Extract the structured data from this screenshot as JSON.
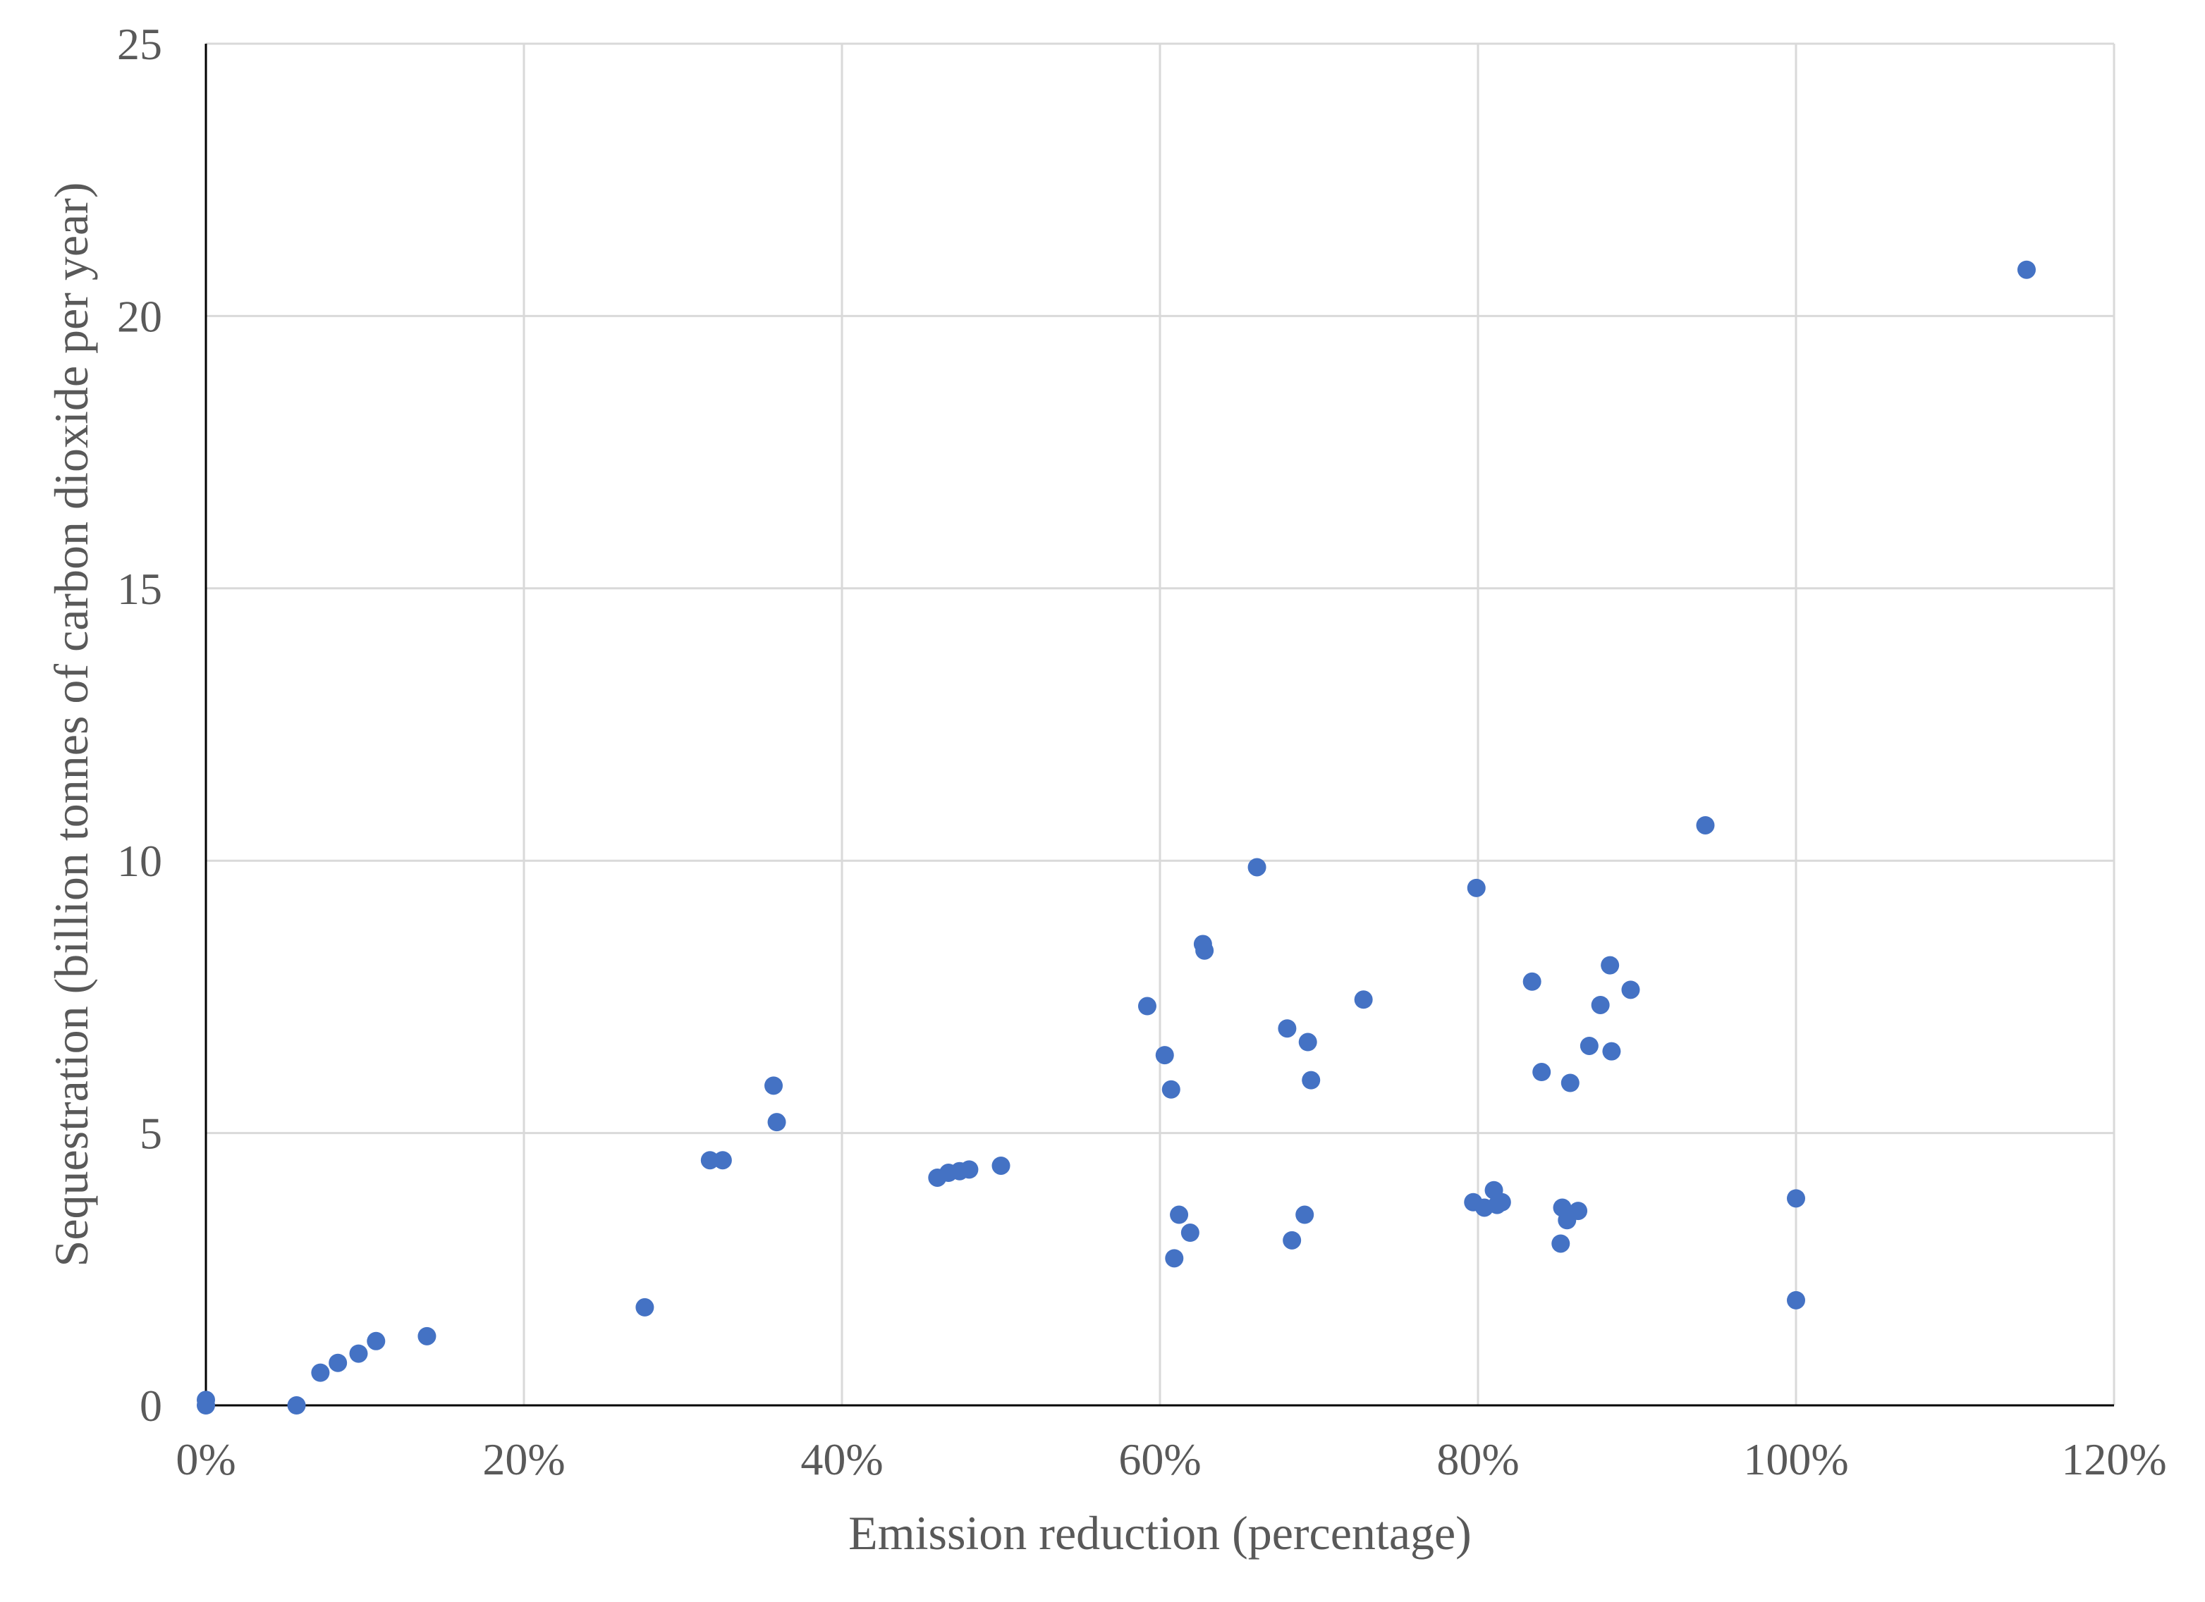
{
  "chart_data": {
    "type": "scatter",
    "title": "",
    "xlabel": "Emission reduction (percentage)",
    "ylabel": "Sequestration (billion tonnes of carbon dioxide per year)",
    "xlim": [
      0,
      1.2
    ],
    "ylim": [
      0,
      25
    ],
    "x_ticks": [
      0,
      0.2,
      0.4,
      0.6,
      0.8,
      1.0,
      1.2
    ],
    "x_tick_labels": [
      "0%",
      "20%",
      "40%",
      "60%",
      "80%",
      "100%",
      "120%"
    ],
    "y_ticks": [
      0,
      5,
      10,
      15,
      20,
      25
    ],
    "y_tick_labels": [
      "0",
      "5",
      "10",
      "15",
      "20",
      "25"
    ],
    "grid": true,
    "legend": "none",
    "colors": {
      "marker": "#4472C4",
      "grid": "#D9D9D9",
      "axis": "#000000",
      "text": "#595959"
    },
    "series": [
      {
        "points": [
          [
            0.0,
            0.1
          ],
          [
            0.0,
            0.0
          ],
          [
            0.057,
            0.0
          ],
          [
            0.072,
            0.6
          ],
          [
            0.083,
            0.78
          ],
          [
            0.096,
            0.95
          ],
          [
            0.107,
            1.18
          ],
          [
            0.139,
            1.27
          ],
          [
            0.276,
            1.8
          ],
          [
            0.317,
            4.5
          ],
          [
            0.325,
            4.5
          ],
          [
            0.357,
            5.87
          ],
          [
            0.359,
            5.2
          ],
          [
            0.46,
            4.18
          ],
          [
            0.467,
            4.27
          ],
          [
            0.474,
            4.3
          ],
          [
            0.48,
            4.33
          ],
          [
            0.5,
            4.4
          ],
          [
            0.592,
            7.33
          ],
          [
            0.603,
            6.43
          ],
          [
            0.607,
            5.8
          ],
          [
            0.609,
            2.7
          ],
          [
            0.612,
            3.5
          ],
          [
            0.619,
            3.17
          ],
          [
            0.627,
            8.47
          ],
          [
            0.628,
            8.35
          ],
          [
            0.661,
            9.88
          ],
          [
            0.68,
            6.92
          ],
          [
            0.683,
            3.03
          ],
          [
            0.691,
            3.5
          ],
          [
            0.693,
            6.67
          ],
          [
            0.695,
            5.97
          ],
          [
            0.728,
            7.45
          ],
          [
            0.797,
            3.73
          ],
          [
            0.799,
            9.5
          ],
          [
            0.804,
            3.63
          ],
          [
            0.81,
            3.95
          ],
          [
            0.812,
            3.68
          ],
          [
            0.815,
            3.73
          ],
          [
            0.834,
            7.78
          ],
          [
            0.84,
            6.12
          ],
          [
            0.852,
            2.97
          ],
          [
            0.853,
            3.63
          ],
          [
            0.856,
            3.4
          ],
          [
            0.858,
            5.92
          ],
          [
            0.863,
            3.57
          ],
          [
            0.87,
            6.6
          ],
          [
            0.877,
            7.35
          ],
          [
            0.883,
            8.08
          ],
          [
            0.884,
            6.5
          ],
          [
            0.896,
            7.63
          ],
          [
            0.943,
            10.65
          ],
          [
            1.0,
            3.8
          ],
          [
            1.0,
            1.93
          ],
          [
            1.145,
            20.85
          ]
        ]
      }
    ]
  }
}
